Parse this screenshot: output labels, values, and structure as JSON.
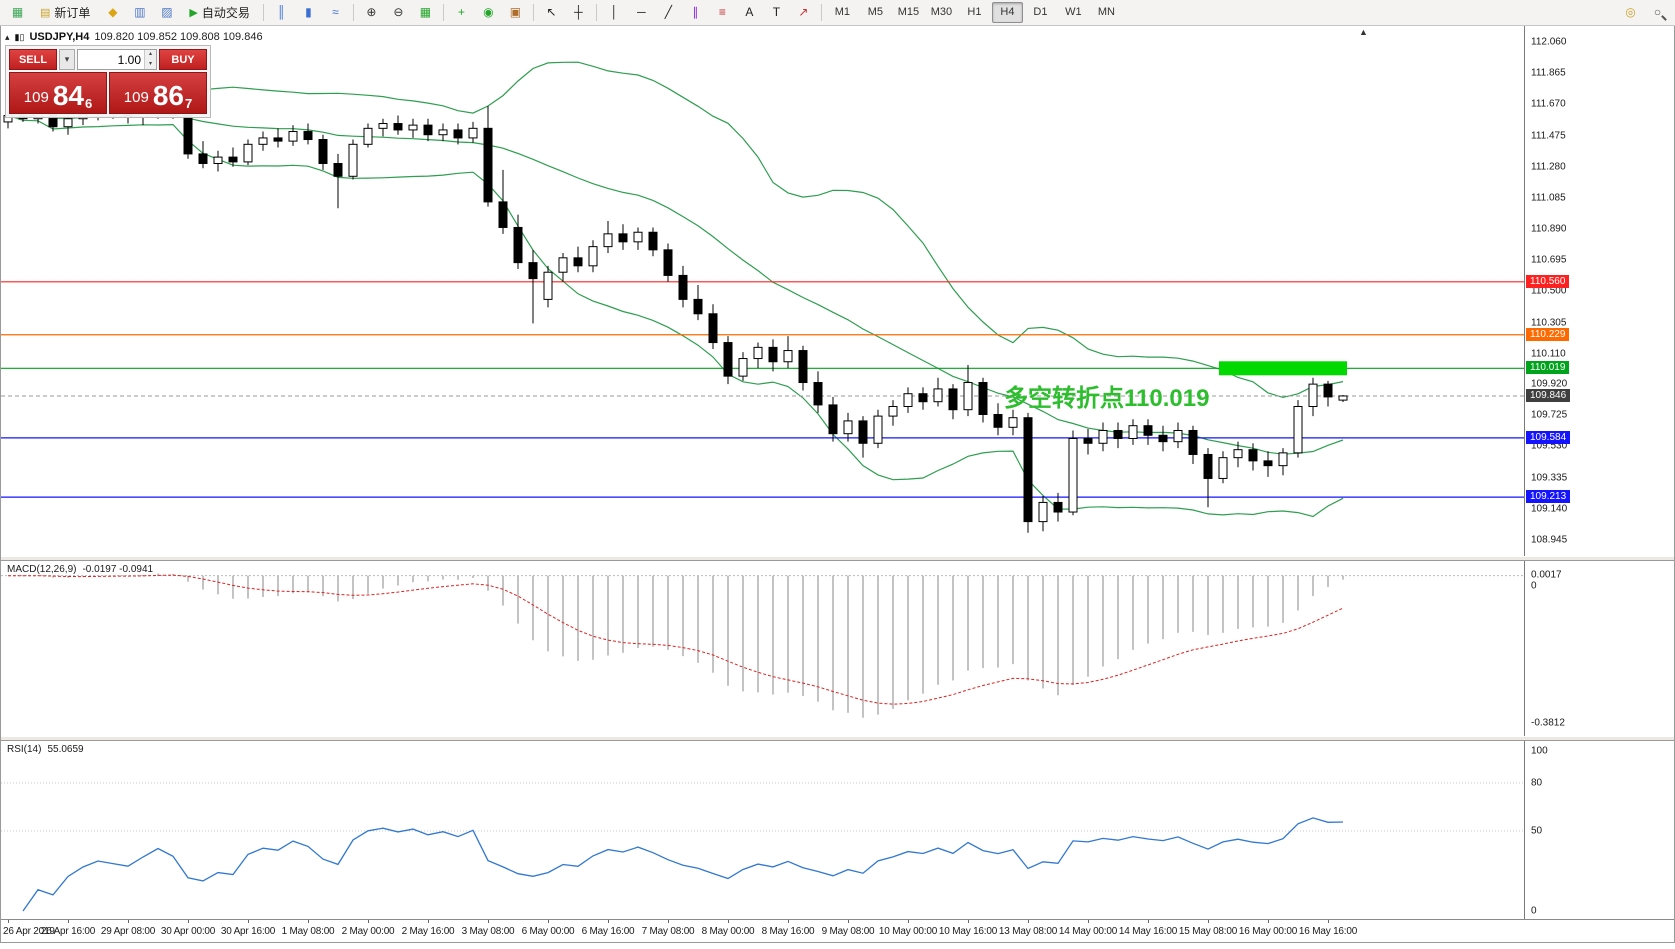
{
  "toolbar": {
    "new_order_label": "新订单",
    "autotrading_label": "自动交易",
    "timeframes": [
      "M1",
      "M5",
      "M15",
      "M30",
      "H1",
      "H4",
      "D1",
      "W1",
      "MN"
    ],
    "active_timeframe": "H4",
    "items": [
      {
        "t": "icon",
        "name": "app-icon",
        "glyph": "▦",
        "color": "#3aa655"
      },
      {
        "t": "btn",
        "name": "new-order-button",
        "glyph": "▤",
        "color": "#c9a227",
        "label": "新订单"
      },
      {
        "t": "icon",
        "name": "new-chart-icon",
        "glyph": "◆",
        "color": "#dba514"
      },
      {
        "t": "icon",
        "name": "chart-profiles-icon",
        "glyph": "▥",
        "color": "#4f79c7"
      },
      {
        "t": "icon",
        "name": "market-watch-icon",
        "glyph": "▨",
        "color": "#4f79c7"
      },
      {
        "t": "btn",
        "name": "autotrading-button",
        "glyph": "▶",
        "color": "#23a52a",
        "label": "自动交易"
      },
      {
        "t": "sep"
      },
      {
        "t": "icon",
        "name": "bar-chart-icon",
        "glyph": "║",
        "color": "#3b6fd4"
      },
      {
        "t": "icon",
        "name": "candlestick-chart-icon",
        "glyph": "▮",
        "color": "#3b6fd4"
      },
      {
        "t": "icon",
        "name": "line-chart-icon",
        "glyph": "≈",
        "color": "#3b6fd4"
      },
      {
        "t": "sep"
      },
      {
        "t": "icon",
        "name": "zoom-in-icon",
        "glyph": "⊕",
        "color": "#333333"
      },
      {
        "t": "icon",
        "name": "zoom-out-icon",
        "glyph": "⊖",
        "color": "#333333"
      },
      {
        "t": "icon",
        "name": "tile-windows-icon",
        "glyph": "▦",
        "color": "#23a52a"
      },
      {
        "t": "sep"
      },
      {
        "t": "icon",
        "name": "indicators-icon",
        "glyph": "+",
        "color": "#23a52a"
      },
      {
        "t": "icon",
        "name": "periods-icon",
        "glyph": "◉",
        "color": "#23a52a"
      },
      {
        "t": "icon",
        "name": "templates-icon",
        "glyph": "▣",
        "color": "#b06c2b"
      },
      {
        "t": "sep"
      },
      {
        "t": "icon",
        "name": "cursor-icon",
        "glyph": "↖",
        "color": "#222222"
      },
      {
        "t": "icon",
        "name": "crosshair-icon",
        "glyph": "┼",
        "color": "#222222"
      },
      {
        "t": "sep"
      },
      {
        "t": "icon",
        "name": "vertical-line-icon",
        "glyph": "│",
        "color": "#222222"
      },
      {
        "t": "icon",
        "name": "horizontal-line-icon",
        "glyph": "─",
        "color": "#222222"
      },
      {
        "t": "icon",
        "name": "trendline-icon",
        "glyph": "╱",
        "color": "#222222"
      },
      {
        "t": "icon",
        "name": "equidistant-channel-icon",
        "glyph": "∥",
        "color": "#8a2be2"
      },
      {
        "t": "icon",
        "name": "fibonacci-icon",
        "glyph": "≡",
        "color": "#c03030"
      },
      {
        "t": "icon",
        "name": "text-icon",
        "glyph": "A",
        "color": "#222222"
      },
      {
        "t": "icon",
        "name": "text-label-icon",
        "glyph": "T",
        "color": "#222222"
      },
      {
        "t": "icon",
        "name": "arrows-icon",
        "glyph": "↗",
        "color": "#c03030"
      },
      {
        "t": "sep"
      },
      {
        "t": "tf"
      },
      {
        "t": "spacer"
      },
      {
        "t": "icon",
        "name": "community-icon",
        "glyph": "◎",
        "color": "#caa227"
      },
      {
        "t": "icon",
        "name": "search-icon",
        "glyph": "○",
        "color": "#555555",
        "cls": "mag"
      }
    ]
  },
  "chart_window": {
    "title": "USDJPY,H4",
    "ohlc_text": "109.820 109.852 109.808 109.846"
  },
  "one_click": {
    "sell_label": "SELL",
    "buy_label": "BUY",
    "volume": "1.00",
    "bid_prefix": "109",
    "bid_main": "84",
    "bid_sup": "6",
    "ask_prefix": "109",
    "ask_main": "86",
    "ask_sup": "7"
  },
  "annotation": {
    "text": "多空转折点110.019",
    "color": "#2dbe2d"
  },
  "chart_data": {
    "type": "candlestick",
    "symbol": "USDJPY",
    "timeframe": "H4",
    "bars_per_label": 4,
    "x_labels": [
      "26 Apr 2019",
      "26 Apr 16:00",
      "29 Apr 08:00",
      "30 Apr 00:00",
      "30 Apr 16:00",
      "1 May 08:00",
      "2 May 00:00",
      "2 May 16:00",
      "3 May 08:00",
      "6 May 00:00",
      "6 May 16:00",
      "7 May 08:00",
      "8 May 00:00",
      "8 May 16:00",
      "9 May 08:00",
      "10 May 00:00",
      "10 May 16:00",
      "13 May 08:00",
      "14 May 00:00",
      "14 May 16:00",
      "15 May 08:00",
      "16 May 00:00",
      "16 May 16:00"
    ],
    "price_axis": {
      "max": 112.06,
      "min": 108.945,
      "ticks": [
        112.06,
        111.865,
        111.67,
        111.475,
        111.28,
        111.085,
        110.89,
        110.695,
        110.5,
        110.305,
        110.11,
        109.92,
        109.725,
        109.53,
        109.335,
        109.14,
        108.945
      ]
    },
    "candles": [
      [
        111.56,
        111.63,
        111.52,
        111.6
      ],
      [
        111.6,
        111.65,
        111.56,
        111.58
      ],
      [
        111.58,
        111.64,
        111.55,
        111.62
      ],
      [
        111.62,
        111.67,
        111.5,
        111.53
      ],
      [
        111.53,
        111.6,
        111.48,
        111.58
      ],
      [
        111.58,
        111.64,
        111.54,
        111.61
      ],
      [
        111.61,
        111.66,
        111.57,
        111.63
      ],
      [
        111.63,
        111.67,
        111.58,
        111.61
      ],
      [
        111.61,
        111.65,
        111.55,
        111.59
      ],
      [
        111.59,
        111.64,
        111.54,
        111.62
      ],
      [
        111.62,
        111.68,
        111.58,
        111.65
      ],
      [
        111.65,
        111.68,
        111.58,
        111.6
      ],
      [
        111.6,
        111.62,
        111.33,
        111.36
      ],
      [
        111.36,
        111.44,
        111.27,
        111.3
      ],
      [
        111.3,
        111.38,
        111.25,
        111.34
      ],
      [
        111.34,
        111.4,
        111.28,
        111.31
      ],
      [
        111.31,
        111.45,
        111.29,
        111.42
      ],
      [
        111.42,
        111.5,
        111.38,
        111.46
      ],
      [
        111.46,
        111.52,
        111.4,
        111.44
      ],
      [
        111.44,
        111.54,
        111.41,
        111.5
      ],
      [
        111.5,
        111.55,
        111.42,
        111.45
      ],
      [
        111.45,
        111.48,
        111.26,
        111.3
      ],
      [
        111.3,
        111.36,
        111.02,
        111.22
      ],
      [
        111.22,
        111.45,
        111.2,
        111.42
      ],
      [
        111.42,
        111.55,
        111.4,
        111.52
      ],
      [
        111.52,
        111.58,
        111.47,
        111.55
      ],
      [
        111.55,
        111.6,
        111.48,
        111.51
      ],
      [
        111.51,
        111.58,
        111.46,
        111.54
      ],
      [
        111.54,
        111.58,
        111.44,
        111.48
      ],
      [
        111.48,
        111.55,
        111.44,
        111.51
      ],
      [
        111.51,
        111.55,
        111.42,
        111.46
      ],
      [
        111.46,
        111.56,
        111.43,
        111.52
      ],
      [
        111.52,
        111.66,
        111.03,
        111.06
      ],
      [
        111.06,
        111.26,
        110.86,
        110.9
      ],
      [
        110.9,
        110.98,
        110.64,
        110.68
      ],
      [
        110.68,
        110.76,
        110.3,
        110.58
      ],
      [
        110.45,
        110.66,
        110.4,
        110.62
      ],
      [
        110.62,
        110.74,
        110.56,
        110.71
      ],
      [
        110.71,
        110.78,
        110.62,
        110.66
      ],
      [
        110.66,
        110.82,
        110.62,
        110.78
      ],
      [
        110.78,
        110.94,
        110.74,
        110.86
      ],
      [
        110.86,
        110.92,
        110.76,
        110.81
      ],
      [
        110.81,
        110.9,
        110.76,
        110.87
      ],
      [
        110.87,
        110.9,
        110.72,
        110.76
      ],
      [
        110.76,
        110.8,
        110.56,
        110.6
      ],
      [
        110.6,
        110.66,
        110.4,
        110.45
      ],
      [
        110.45,
        110.54,
        110.32,
        110.36
      ],
      [
        110.36,
        110.42,
        110.14,
        110.18
      ],
      [
        110.18,
        110.22,
        109.92,
        109.97
      ],
      [
        109.97,
        110.12,
        109.94,
        110.08
      ],
      [
        110.08,
        110.18,
        110.02,
        110.15
      ],
      [
        110.15,
        110.2,
        110.0,
        110.06
      ],
      [
        110.06,
        110.22,
        110.02,
        110.13
      ],
      [
        110.13,
        110.16,
        109.88,
        109.93
      ],
      [
        109.93,
        110.0,
        109.74,
        109.79
      ],
      [
        109.79,
        109.84,
        109.56,
        109.61
      ],
      [
        109.61,
        109.74,
        109.56,
        109.69
      ],
      [
        109.69,
        109.72,
        109.46,
        109.55
      ],
      [
        109.55,
        109.76,
        109.52,
        109.72
      ],
      [
        109.72,
        109.82,
        109.66,
        109.78
      ],
      [
        109.78,
        109.9,
        109.74,
        109.86
      ],
      [
        109.86,
        109.9,
        109.76,
        109.81
      ],
      [
        109.81,
        109.96,
        109.78,
        109.89
      ],
      [
        109.89,
        109.92,
        109.7,
        109.76
      ],
      [
        109.76,
        110.04,
        109.72,
        109.93
      ],
      [
        109.93,
        109.96,
        109.68,
        109.73
      ],
      [
        109.73,
        109.8,
        109.6,
        109.65
      ],
      [
        109.65,
        109.76,
        109.6,
        109.71
      ],
      [
        109.71,
        109.74,
        108.99,
        109.06
      ],
      [
        109.06,
        109.22,
        109.0,
        109.18
      ],
      [
        109.18,
        109.24,
        109.06,
        109.12
      ],
      [
        109.12,
        109.63,
        109.1,
        109.58
      ],
      [
        109.58,
        109.64,
        109.48,
        109.55
      ],
      [
        109.55,
        109.68,
        109.5,
        109.63
      ],
      [
        109.63,
        109.68,
        109.52,
        109.58
      ],
      [
        109.58,
        109.7,
        109.54,
        109.66
      ],
      [
        109.66,
        109.7,
        109.54,
        109.6
      ],
      [
        109.6,
        109.66,
        109.5,
        109.56
      ],
      [
        109.56,
        109.68,
        109.52,
        109.63
      ],
      [
        109.63,
        109.66,
        109.42,
        109.48
      ],
      [
        109.48,
        109.52,
        109.15,
        109.33
      ],
      [
        109.33,
        109.5,
        109.3,
        109.46
      ],
      [
        109.46,
        109.56,
        109.4,
        109.51
      ],
      [
        109.51,
        109.55,
        109.38,
        109.44
      ],
      [
        109.44,
        109.5,
        109.34,
        109.41
      ],
      [
        109.41,
        109.52,
        109.35,
        109.49
      ],
      [
        109.49,
        109.82,
        109.46,
        109.78
      ],
      [
        109.78,
        109.96,
        109.72,
        109.92
      ],
      [
        109.92,
        109.94,
        109.78,
        109.84
      ],
      [
        109.82,
        109.852,
        109.808,
        109.846
      ]
    ],
    "levels": [
      {
        "price": 110.56,
        "label": "110.560",
        "color": "#ff2020"
      },
      {
        "price": 110.229,
        "label": "110.229",
        "color": "#ff6a00"
      },
      {
        "price": 110.019,
        "label": "110.019",
        "color": "#00a31c"
      },
      {
        "price": 109.584,
        "label": "109.584",
        "color": "#1414ff"
      },
      {
        "price": 109.213,
        "label": "109.213",
        "color": "#1414ff"
      }
    ],
    "current_price": {
      "value": 109.846,
      "label": "109.846",
      "badge_color": "#3f3f3f",
      "line_color": "#9a9a9a"
    },
    "highlight_rect": {
      "price": 110.019,
      "from_bar": 81,
      "to_bar": 89,
      "color": "#00d800"
    },
    "indicators": {
      "bollinger": {
        "period": 20,
        "deviation": 2,
        "color": "#2e9e4f"
      },
      "macd": {
        "label": "MACD(12,26,9)",
        "values_text": "-0.0197 -0.0941",
        "params": [
          12,
          26,
          9
        ],
        "axis": {
          "max": 0.0017,
          "min": -0.3812
        },
        "scale_labels": [
          {
            "text": "0.0017",
            "value": 0.0017
          },
          {
            "text": "0",
            "value": 0
          },
          {
            "text": "-0.3812",
            "value": -0.3812
          }
        ],
        "histogram_color": "#b4b4b4",
        "signal_color": "#e02020"
      },
      "rsi": {
        "label": "RSI(14)",
        "value_text": "55.0659",
        "period": 14,
        "levels": [
          80,
          50
        ],
        "scale_labels": [
          {
            "text": "100",
            "value": 100
          },
          {
            "text": "80",
            "value": 80
          },
          {
            "text": "50",
            "value": 50
          },
          {
            "text": "0",
            "value": 0
          }
        ],
        "color": "#3178d0"
      }
    }
  }
}
